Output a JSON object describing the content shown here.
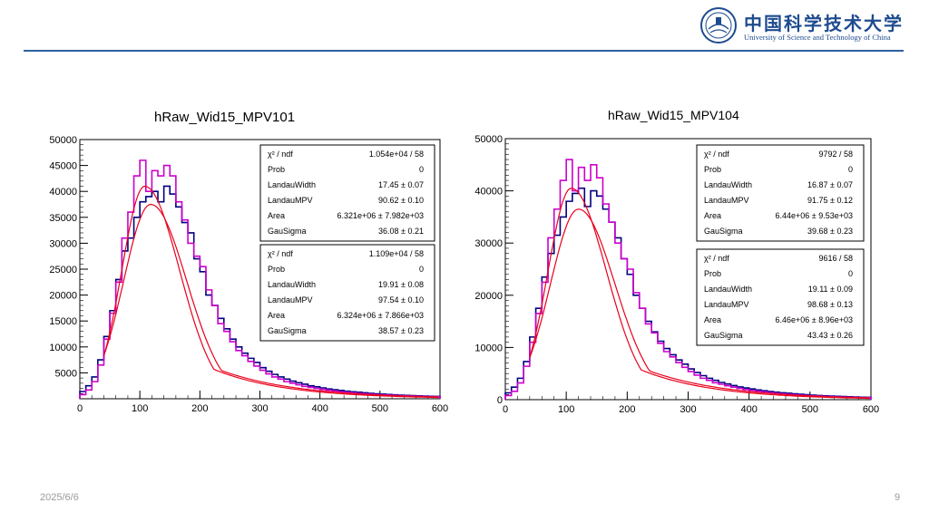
{
  "logo": {
    "cn": "中国科学技术大学",
    "en": "University of Science and Technology of China",
    "seal_color": "#1e4b8f"
  },
  "footer": {
    "date": "2025/6/6",
    "page": "9"
  },
  "colors": {
    "hist1": "#000080",
    "hist2": "#cc00cc",
    "fit": "#e8001c",
    "accent": "#2e5fa3"
  },
  "chart_data": [
    {
      "type": "bar",
      "title": "hRaw_Wid15_MPV101",
      "xlabel": "",
      "ylabel": "",
      "xlim": [
        0,
        600
      ],
      "ylim": [
        0,
        50000
      ],
      "xticks": [
        "0",
        "100",
        "200",
        "300",
        "400",
        "500",
        "600"
      ],
      "yticks": [
        "5000",
        "10000",
        "15000",
        "20000",
        "25000",
        "30000",
        "35000",
        "40000",
        "45000",
        "50000"
      ],
      "bin_width": 10,
      "series": [
        {
          "color": "#000080",
          "values": [
            1400,
            2500,
            4200,
            7500,
            12000,
            17000,
            23000,
            28500,
            31000,
            35000,
            38000,
            39000,
            40000,
            38000,
            41000,
            39500,
            37000,
            34000,
            32000,
            27000,
            24500,
            20000,
            18000,
            15500,
            13500,
            11500,
            10000,
            8800,
            7800,
            7000,
            6000,
            5300,
            4700,
            4200,
            3800,
            3400,
            3100,
            2800,
            2500,
            2300,
            2100,
            1900,
            1750,
            1600,
            1450,
            1350,
            1250,
            1150,
            1050,
            950,
            880,
            820,
            760,
            700,
            650,
            600,
            560,
            520,
            480,
            450
          ]
        },
        {
          "color": "#cc00cc",
          "values": [
            800,
            1700,
            3300,
            6500,
            11500,
            16500,
            22500,
            31000,
            36000,
            43000,
            46000,
            40000,
            44000,
            43000,
            45000,
            43000,
            38000,
            34500,
            30000,
            27500,
            25500,
            21000,
            18000,
            14500,
            13000,
            11000,
            9300,
            8300,
            7200,
            6300,
            5500,
            4800,
            4200,
            3800,
            3300,
            3000,
            2700,
            2400,
            2200,
            2000,
            1800,
            1650,
            1500,
            1350,
            1250,
            1150,
            1050,
            950,
            880,
            800,
            740,
            690,
            640,
            590,
            550,
            510,
            470,
            440,
            410,
            380
          ]
        }
      ],
      "fits": [
        {
          "color": "#e8001c",
          "scale": 41000,
          "center": 108,
          "sigma_l": 38,
          "sigma_r": 58,
          "tail": 9000,
          "tail_scale": 120
        },
        {
          "color": "#e8001c",
          "scale": 37500,
          "center": 118,
          "sigma_l": 45,
          "sigma_r": 60,
          "tail": 8500,
          "tail_scale": 130
        }
      ],
      "stats": [
        {
          "rows": [
            [
              "χ² / ndf",
              "1.054e+04 / 58"
            ],
            [
              "Prob",
              "0"
            ],
            [
              "LandauWidth",
              "17.45 ± 0.07"
            ],
            [
              "LandauMPV",
              "90.62 ± 0.10"
            ],
            [
              "Area",
              "6.321e+06 ± 7.982e+03"
            ],
            [
              "GauSigma",
              "36.08 ± 0.21"
            ]
          ]
        },
        {
          "rows": [
            [
              "χ² / ndf",
              "1.109e+04 / 58"
            ],
            [
              "Prob",
              "0"
            ],
            [
              "LandauWidth",
              "19.91 ± 0.08"
            ],
            [
              "LandauMPV",
              "97.54 ± 0.10"
            ],
            [
              "Area",
              "6.324e+06 ± 7.866e+03"
            ],
            [
              "GauSigma",
              "38.57 ± 0.23"
            ]
          ]
        }
      ]
    },
    {
      "type": "bar",
      "title": "hRaw_Wid15_MPV104",
      "xlabel": "",
      "ylabel": "",
      "xlim": [
        0,
        600
      ],
      "ylim": [
        0,
        50000
      ],
      "xticks": [
        "0",
        "100",
        "200",
        "300",
        "400",
        "500",
        "600"
      ],
      "yticks": [
        "0",
        "10000",
        "20000",
        "30000",
        "40000",
        "50000"
      ],
      "bin_width": 10,
      "series": [
        {
          "color": "#000080",
          "values": [
            1300,
            2400,
            4100,
            7300,
            12000,
            17500,
            23500,
            28000,
            31500,
            35000,
            38000,
            39500,
            40500,
            37000,
            40000,
            39000,
            36500,
            34000,
            31000,
            27000,
            24000,
            20000,
            17500,
            15000,
            13000,
            11200,
            9800,
            8600,
            7600,
            6800,
            5900,
            5200,
            4600,
            4100,
            3700,
            3300,
            3000,
            2700,
            2450,
            2250,
            2050,
            1850,
            1700,
            1550,
            1420,
            1320,
            1220,
            1120,
            1030,
            940,
            860,
            800,
            740,
            690,
            640,
            590,
            550,
            510,
            470,
            440
          ]
        },
        {
          "color": "#cc00cc",
          "values": [
            800,
            1600,
            3200,
            6400,
            11000,
            16500,
            22500,
            31000,
            36500,
            42000,
            46000,
            40000,
            44500,
            42000,
            45000,
            42500,
            37500,
            34000,
            30000,
            27000,
            25000,
            20500,
            17500,
            14500,
            12800,
            10800,
            9200,
            8200,
            7100,
            6200,
            5400,
            4700,
            4100,
            3700,
            3250,
            2950,
            2650,
            2400,
            2150,
            1950,
            1780,
            1620,
            1480,
            1340,
            1230,
            1130,
            1040,
            950,
            870,
            800,
            740,
            680,
            630,
            580,
            540,
            500,
            470,
            440,
            410,
            380
          ]
        }
      ],
      "fits": [
        {
          "color": "#e8001c",
          "scale": 40500,
          "center": 108,
          "sigma_l": 38,
          "sigma_r": 58,
          "tail": 9000,
          "tail_scale": 120
        },
        {
          "color": "#e8001c",
          "scale": 36500,
          "center": 120,
          "sigma_l": 46,
          "sigma_r": 60,
          "tail": 8500,
          "tail_scale": 130
        }
      ],
      "stats": [
        {
          "rows": [
            [
              "χ² / ndf",
              "9792 / 58"
            ],
            [
              "Prob",
              "0"
            ],
            [
              "LandauWidth",
              "16.87 ± 0.07"
            ],
            [
              "LandauMPV",
              "91.75 ± 0.12"
            ],
            [
              "Area",
              "6.44e+06 ± 9.53e+03"
            ],
            [
              "GauSigma",
              "39.68 ± 0.23"
            ]
          ]
        },
        {
          "rows": [
            [
              "χ² / ndf",
              "9616 / 58"
            ],
            [
              "Prob",
              "0"
            ],
            [
              "LandauWidth",
              "19.11 ± 0.09"
            ],
            [
              "LandauMPV",
              "98.68 ± 0.13"
            ],
            [
              "Area",
              "6.46e+06 ± 8.96e+03"
            ],
            [
              "GauSigma",
              "43.43 ± 0.26"
            ]
          ]
        }
      ]
    }
  ]
}
